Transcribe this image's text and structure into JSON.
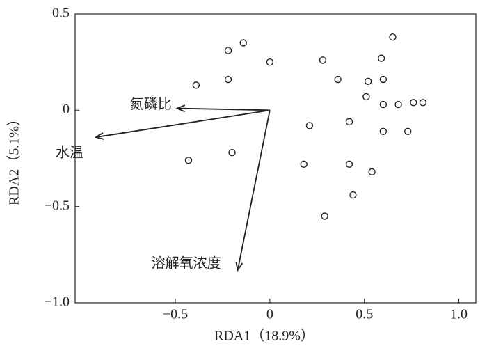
{
  "chart_data": {
    "type": "scatter",
    "x_label": "RDA1（18.9%）",
    "y_label": "RDA2（5.1%）",
    "xlim": [
      -1.03,
      1.09
    ],
    "ylim": [
      -1.0,
      0.5
    ],
    "xticks": [
      {
        "value": -0.5,
        "label": "−0.5"
      },
      0,
      0.5,
      {
        "value": 1,
        "label": "1.0"
      }
    ],
    "yticks": [
      {
        "value": -1,
        "label": "−1.0"
      },
      {
        "value": -0.5,
        "label": "−0.5"
      },
      0,
      0.5
    ],
    "color": "#222222",
    "points": {
      "x": [
        0.65,
        -0.14,
        -0.22,
        0.59,
        0,
        0.28,
        -0.39,
        -0.22,
        0.36,
        0.52,
        0.6,
        0.51,
        0.6,
        0.68,
        0.76,
        0.81,
        0.21,
        0.42,
        0.6,
        0.73,
        -0.2,
        -0.43,
        0.18,
        0.42,
        0.54,
        0.44,
        0.29
      ],
      "y": [
        0.38,
        0.35,
        0.31,
        0.27,
        0.25,
        0.26,
        0.13,
        0.16,
        0.16,
        0.15,
        0.16,
        0.07,
        0.03,
        0.03,
        0.04,
        0.04,
        -0.08,
        -0.06,
        -0.11,
        -0.11,
        -0.22,
        -0.26,
        -0.28,
        -0.28,
        -0.32,
        -0.44,
        -0.55
      ]
    },
    "vectors": [
      {
        "name": "氮磷比",
        "x": -0.49,
        "y": 0.01
      },
      {
        "name": "水温",
        "x": -0.92,
        "y": -0.14
      },
      {
        "name": "溶解氧浓度",
        "x": -0.17,
        "y": -0.83
      }
    ]
  }
}
